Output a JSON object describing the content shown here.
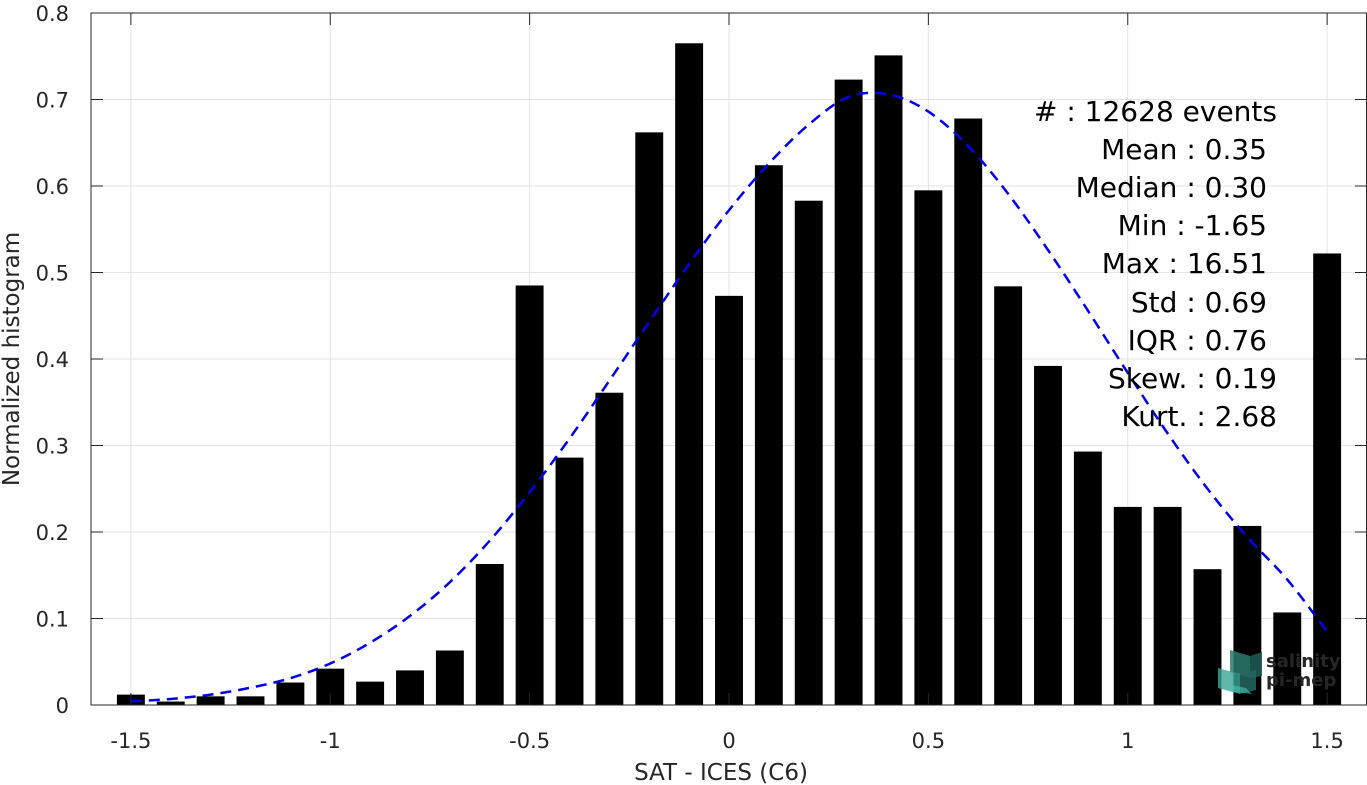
{
  "chart_data": {
    "type": "bar",
    "xlabel": "SAT - ICES (C6)",
    "ylabel": "Normalized histogram",
    "xlim": [
      -1.6,
      1.6
    ],
    "ylim": [
      0,
      0.8
    ],
    "grid": true,
    "xticks": [
      -1.5,
      -1,
      -0.5,
      0,
      0.5,
      1,
      1.5
    ],
    "xtick_labels": [
      "-1.5",
      "-1",
      "-0.5",
      "0",
      "0.5",
      "1",
      "1.5"
    ],
    "yticks": [
      0,
      0.1,
      0.2,
      0.3,
      0.4,
      0.5,
      0.6,
      0.7,
      0.8
    ],
    "ytick_labels": [
      "0",
      "0.1",
      "0.2",
      "0.3",
      "0.4",
      "0.5",
      "0.6",
      "0.7",
      "0.8"
    ],
    "bar_width": 0.07,
    "bars": [
      {
        "x": -1.5,
        "y": 0.012
      },
      {
        "x": -1.4,
        "y": 0.004
      },
      {
        "x": -1.3,
        "y": 0.01
      },
      {
        "x": -1.2,
        "y": 0.01
      },
      {
        "x": -1.1,
        "y": 0.026
      },
      {
        "x": -1.0,
        "y": 0.042
      },
      {
        "x": -0.9,
        "y": 0.027
      },
      {
        "x": -0.8,
        "y": 0.04
      },
      {
        "x": -0.7,
        "y": 0.063
      },
      {
        "x": -0.6,
        "y": 0.163
      },
      {
        "x": -0.5,
        "y": 0.485
      },
      {
        "x": -0.4,
        "y": 0.286
      },
      {
        "x": -0.3,
        "y": 0.361
      },
      {
        "x": -0.2,
        "y": 0.662
      },
      {
        "x": -0.1,
        "y": 0.765
      },
      {
        "x": 0.0,
        "y": 0.473
      },
      {
        "x": 0.1,
        "y": 0.624
      },
      {
        "x": 0.2,
        "y": 0.583
      },
      {
        "x": 0.3,
        "y": 0.723
      },
      {
        "x": 0.4,
        "y": 0.751
      },
      {
        "x": 0.5,
        "y": 0.595
      },
      {
        "x": 0.6,
        "y": 0.678
      },
      {
        "x": 0.7,
        "y": 0.484
      },
      {
        "x": 0.8,
        "y": 0.392
      },
      {
        "x": 0.9,
        "y": 0.293
      },
      {
        "x": 1.0,
        "y": 0.229
      },
      {
        "x": 1.1,
        "y": 0.229
      },
      {
        "x": 1.2,
        "y": 0.157
      },
      {
        "x": 1.3,
        "y": 0.207
      },
      {
        "x": 1.4,
        "y": 0.107
      },
      {
        "x": 1.5,
        "y": 0.522
      }
    ],
    "fit_curve": {
      "style": "dashed",
      "color": "#0000ee",
      "x": [
        -1.5,
        -1.4,
        -1.3,
        -1.2,
        -1.1,
        -1.0,
        -0.9,
        -0.8,
        -0.7,
        -0.6,
        -0.5,
        -0.4,
        -0.3,
        -0.2,
        -0.1,
        0.0,
        0.1,
        0.2,
        0.3,
        0.4,
        0.5,
        0.6,
        0.7,
        0.8,
        0.9,
        1.0,
        1.1,
        1.2,
        1.3,
        1.4,
        1.5
      ],
      "y": [
        0.004,
        0.007,
        0.012,
        0.02,
        0.031,
        0.048,
        0.072,
        0.103,
        0.142,
        0.19,
        0.246,
        0.308,
        0.375,
        0.443,
        0.51,
        0.572,
        0.626,
        0.671,
        0.703,
        0.706,
        0.686,
        0.646,
        0.591,
        0.526,
        0.456,
        0.384,
        0.314,
        0.25,
        0.194,
        0.145,
        0.085
      ]
    },
    "bar_color": "#000000"
  },
  "stats": [
    "#  : 12628 events",
    "Mean : 0.35",
    "Median : 0.30",
    "Min : -1.65",
    "Max : 16.51",
    "Std : 0.69",
    "IQR : 0.76",
    "Skew. : 0.19",
    "Kurt. : 2.68"
  ],
  "logo": {
    "line1": "salinity",
    "line2": "pi-mep",
    "color": "#1aa38c"
  }
}
